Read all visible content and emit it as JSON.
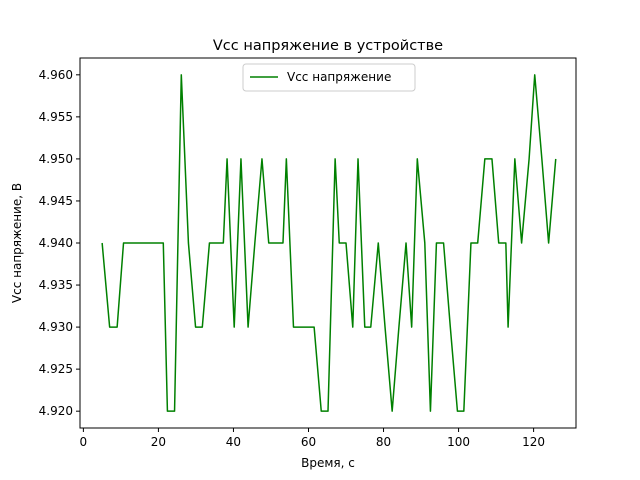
{
  "chart_data": {
    "type": "line",
    "title": "Vcc напряжение в устройстве",
    "xlabel": "Время, с",
    "ylabel": "Vcc напряжение, В",
    "xlim": [
      -0.9,
      131.3
    ],
    "ylim": [
      4.918,
      4.962
    ],
    "xticks": [
      0,
      20,
      40,
      60,
      80,
      100,
      120
    ],
    "xtick_labels": [
      "0",
      "20",
      "40",
      "60",
      "80",
      "100",
      "120"
    ],
    "yticks": [
      4.92,
      4.925,
      4.93,
      4.935,
      4.94,
      4.945,
      4.95,
      4.955,
      4.96
    ],
    "ytick_labels": [
      "4.920",
      "4.925",
      "4.930",
      "4.935",
      "4.940",
      "4.945",
      "4.950",
      "4.955",
      "4.960"
    ],
    "grid": false,
    "legend_position": "top-center",
    "series": [
      {
        "name": "Vcc напряжение",
        "color": "#008000",
        "x": [
          5,
          7,
          9,
          10.7,
          12.6,
          14.4,
          16.3,
          18.1,
          20,
          21.3,
          22.4,
          24.3,
          26.1,
          28,
          29.9,
          31.7,
          33.6,
          35.4,
          37.3,
          38.3,
          40.2,
          42,
          43.9,
          45.7,
          47.6,
          49.4,
          51.3,
          53.2,
          54.1,
          56,
          57.8,
          59.7,
          61.5,
          63.4,
          65.2,
          67.1,
          68.2,
          70,
          71.8,
          73.2,
          75,
          76.6,
          78.6,
          80.4,
          82.3,
          84.1,
          86,
          87.5,
          89,
          91,
          92.5,
          94.1,
          96,
          97.8,
          99.7,
          101.4,
          103.3,
          105.1,
          107,
          108.9,
          110.7,
          112.6,
          113.2,
          115,
          116.8,
          118.8,
          120.3,
          122.2,
          124,
          125.9
        ],
        "y": [
          4.94,
          4.93,
          4.93,
          4.94,
          4.94,
          4.94,
          4.94,
          4.94,
          4.94,
          4.94,
          4.92,
          4.92,
          4.96,
          4.94,
          4.93,
          4.93,
          4.94,
          4.94,
          4.94,
          4.95,
          4.93,
          4.95,
          4.93,
          4.94,
          4.95,
          4.94,
          4.94,
          4.94,
          4.95,
          4.93,
          4.93,
          4.93,
          4.93,
          4.92,
          4.92,
          4.95,
          4.94,
          4.94,
          4.93,
          4.95,
          4.93,
          4.93,
          4.94,
          4.93,
          4.92,
          4.93,
          4.94,
          4.93,
          4.95,
          4.94,
          4.92,
          4.94,
          4.94,
          4.93,
          4.92,
          4.92,
          4.94,
          4.94,
          4.95,
          4.95,
          4.94,
          4.94,
          4.93,
          4.95,
          4.94,
          4.95,
          4.96,
          4.95,
          4.94,
          4.95
        ]
      }
    ]
  }
}
